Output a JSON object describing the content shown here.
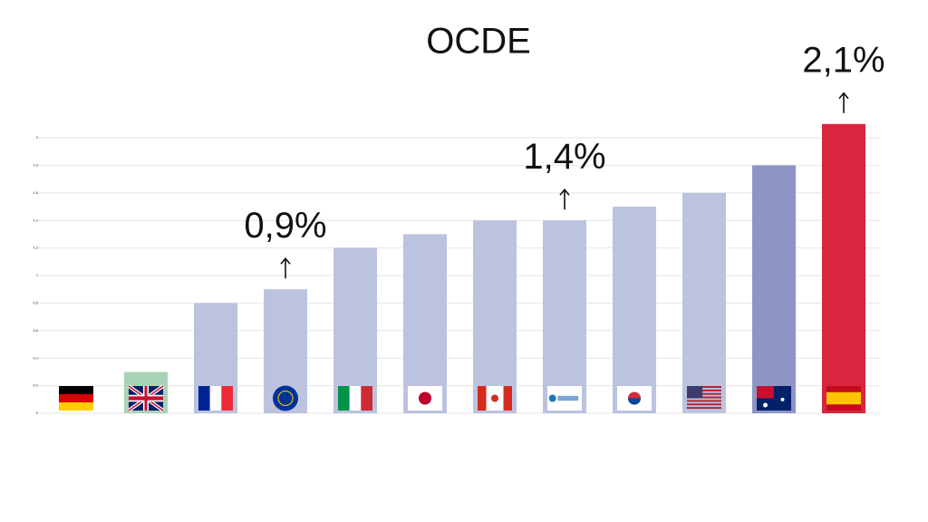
{
  "chart_data": {
    "type": "bar",
    "title": "OCDE",
    "categories": [
      null,
      null,
      null,
      null,
      null,
      null,
      null,
      null,
      null,
      null,
      null,
      null
    ],
    "values": [
      0,
      0.3,
      0.8,
      0.9,
      1.2,
      1.3,
      1.4,
      1.4,
      1.5,
      1.6,
      1.8,
      2.1
    ],
    "value_labels": [
      null,
      null,
      null,
      "0,9%",
      null,
      null,
      null,
      "1,4%",
      null,
      null,
      null,
      "2,1%"
    ],
    "colors": [
      "#bcc3df",
      "#a9d3b6",
      "#bcc3df",
      "#bcc3df",
      "#bcc3df",
      "#bcc3df",
      "#bcc3df",
      "#bcc3df",
      "#bcc3df",
      "#bcc3df",
      "#8e95c4",
      "#d7263d"
    ],
    "ylim": [
      0,
      2
    ],
    "yticks": [
      0,
      0.2,
      0.4,
      0.6,
      0.8,
      1,
      1.2,
      1.4,
      1.6,
      1.8,
      2
    ],
    "grid": true
  }
}
